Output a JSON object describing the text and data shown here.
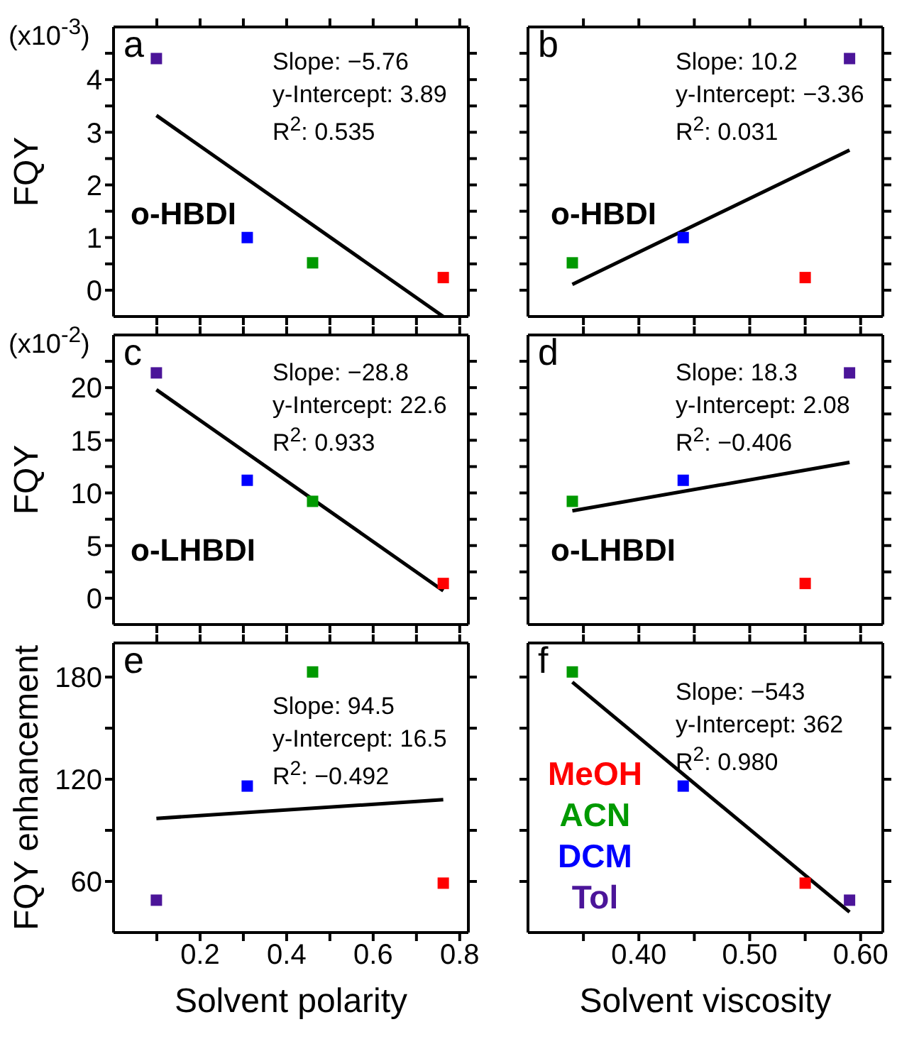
{
  "chart_data": [
    {
      "type": "scatter",
      "ylabel": "FQY",
      "xlim": [
        0,
        0.82
      ],
      "ylim": [
        -0.5,
        5.0
      ],
      "xticks": [
        0.1,
        0.2,
        0.3,
        0.4,
        0.5,
        0.6,
        0.7,
        0.8
      ],
      "yticks": [
        0,
        {
          "value": 0.5,
          "label": null
        },
        1,
        {
          "value": 1.5,
          "label": null
        },
        2,
        {
          "value": 2.5,
          "label": null
        },
        3,
        {
          "value": 3.5,
          "label": null
        },
        4,
        {
          "value": 4.5,
          "label": null
        }
      ],
      "tick_labels": "y",
      "series": [
        {
          "color": "#ff0000",
          "marker": "square",
          "x": [
            0.762
          ],
          "values": [
            0.24
          ]
        },
        {
          "color": "#009900",
          "marker": "square",
          "x": [
            0.46
          ],
          "values": [
            0.52
          ]
        },
        {
          "color": "#0000ff",
          "marker": "square",
          "x": [
            0.309
          ],
          "values": [
            1.0
          ]
        },
        {
          "color": "#4b1599",
          "marker": "square",
          "x": [
            0.099
          ],
          "values": [
            4.4
          ]
        },
        {
          "type": "line",
          "color": "#000000",
          "x": [
            0.099,
            0.762
          ],
          "values": [
            3.32,
            -0.5
          ]
        }
      ],
      "annotations": [
        "a",
        "Slope: −5.76",
        "y-Intercept: 3.89",
        "R$^{2}$: 0.535",
        "o-HBDI",
        "(x10$^{-3}$)"
      ]
    },
    {
      "type": "scatter",
      "xlim": [
        0.3,
        0.62
      ],
      "ylim": [
        -0.5,
        5.0
      ],
      "xticks": [
        0.35,
        0.4,
        0.45,
        0.5,
        0.55,
        0.6
      ],
      "yticks": [
        0,
        0.5,
        1,
        1.5,
        2,
        2.5,
        3,
        3.5,
        4,
        4.5
      ],
      "tick_labels": false,
      "series": [
        {
          "color": "#ff0000",
          "marker": "square",
          "x": [
            0.55
          ],
          "values": [
            0.24
          ]
        },
        {
          "color": "#009900",
          "marker": "square",
          "x": [
            0.34
          ],
          "values": [
            0.52
          ]
        },
        {
          "color": "#0000ff",
          "marker": "square",
          "x": [
            0.44
          ],
          "values": [
            1.0
          ]
        },
        {
          "color": "#4b1599",
          "marker": "square",
          "x": [
            0.59
          ],
          "values": [
            4.4
          ]
        },
        {
          "type": "line",
          "color": "#000000",
          "x": [
            0.34,
            0.59
          ],
          "values": [
            0.11,
            2.66
          ]
        }
      ],
      "annotations": [
        "b",
        "Slope: 10.2",
        "y-Intercept: −3.36",
        "R$^{2}$: 0.031",
        "o-HBDI"
      ]
    },
    {
      "type": "scatter",
      "ylabel": "FQY",
      "xlim": [
        0,
        0.82
      ],
      "ylim": [
        -2.5,
        25
      ],
      "xticks": [
        0.1,
        0.2,
        0.3,
        0.4,
        0.5,
        0.6,
        0.7,
        0.8
      ],
      "yticks": [
        0,
        {
          "value": 2.5,
          "label": null
        },
        5,
        {
          "value": 7.5,
          "label": null
        },
        10,
        {
          "value": 12.5,
          "label": null
        },
        15,
        {
          "value": 17.5,
          "label": null
        },
        20,
        {
          "value": 22.5,
          "label": null
        }
      ],
      "tick_labels": "y",
      "series": [
        {
          "color": "#ff0000",
          "marker": "square",
          "x": [
            0.762
          ],
          "values": [
            1.4
          ]
        },
        {
          "color": "#009900",
          "marker": "square",
          "x": [
            0.46
          ],
          "values": [
            9.2
          ]
        },
        {
          "color": "#0000ff",
          "marker": "square",
          "x": [
            0.309
          ],
          "values": [
            11.2
          ]
        },
        {
          "color": "#4b1599",
          "marker": "square",
          "x": [
            0.099
          ],
          "values": [
            21.4
          ]
        },
        {
          "type": "line",
          "color": "#000000",
          "x": [
            0.099,
            0.762
          ],
          "values": [
            19.8,
            0.7
          ]
        }
      ],
      "annotations": [
        "c",
        "Slope: −28.8",
        "y-Intercept: 22.6",
        "R$^{2}$: 0.933",
        "o-LHBDI",
        "(x10$^{-2}$)"
      ]
    },
    {
      "type": "scatter",
      "xlim": [
        0.3,
        0.62
      ],
      "ylim": [
        -2.5,
        25
      ],
      "xticks": [
        0.35,
        0.4,
        0.45,
        0.5,
        0.55,
        0.6
      ],
      "yticks": [
        0,
        2.5,
        5,
        7.5,
        10,
        12.5,
        15,
        17.5,
        20,
        22.5
      ],
      "tick_labels": false,
      "series": [
        {
          "color": "#ff0000",
          "marker": "square",
          "x": [
            0.55
          ],
          "values": [
            1.4
          ]
        },
        {
          "color": "#009900",
          "marker": "square",
          "x": [
            0.34
          ],
          "values": [
            9.2
          ]
        },
        {
          "color": "#0000ff",
          "marker": "square",
          "x": [
            0.44
          ],
          "values": [
            11.2
          ]
        },
        {
          "color": "#4b1599",
          "marker": "square",
          "x": [
            0.59
          ],
          "values": [
            21.4
          ]
        },
        {
          "type": "line",
          "color": "#000000",
          "x": [
            0.34,
            0.59
          ],
          "values": [
            8.3,
            12.9
          ]
        }
      ],
      "annotations": [
        "d",
        "Slope: 18.3",
        "y-Intercept: 2.08",
        "R$^{2}$: −0.406",
        "o-LHBDI"
      ]
    },
    {
      "type": "scatter",
      "xlabel": "Solvent polarity",
      "ylabel": "FQY enhancement",
      "xlim": [
        0,
        0.82
      ],
      "ylim": [
        30,
        200
      ],
      "xticks": [
        {
          "value": 0.1,
          "label": null
        },
        0.2,
        {
          "value": 0.3,
          "label": null
        },
        0.4,
        {
          "value": 0.5,
          "label": null
        },
        0.6,
        {
          "value": 0.7,
          "label": null
        },
        0.8
      ],
      "yticks": [
        60,
        {
          "value": 90,
          "label": null
        },
        120,
        {
          "value": 150,
          "label": null
        },
        180
      ],
      "series": [
        {
          "color": "#ff0000",
          "marker": "square",
          "x": [
            0.762
          ],
          "values": [
            59
          ]
        },
        {
          "color": "#009900",
          "marker": "square",
          "x": [
            0.46
          ],
          "values": [
            183
          ]
        },
        {
          "color": "#0000ff",
          "marker": "square",
          "x": [
            0.309
          ],
          "values": [
            116
          ]
        },
        {
          "color": "#4b1599",
          "marker": "square",
          "x": [
            0.099
          ],
          "values": [
            49
          ]
        },
        {
          "type": "line",
          "color": "#000000",
          "x": [
            0.099,
            0.762
          ],
          "values": [
            97,
            108
          ]
        }
      ],
      "annotations": [
        "e",
        "Slope: 94.5",
        "y-Intercept: 16.5",
        "R$^{2}$: −0.492"
      ]
    },
    {
      "type": "scatter",
      "xlabel": "Solvent viscosity",
      "xlim": [
        0.3,
        0.62
      ],
      "ylim": [
        30,
        200
      ],
      "xticks": [
        {
          "value": 0.35,
          "label": null
        },
        {
          "value": 0.4,
          "label": "0.40"
        },
        {
          "value": 0.45,
          "label": null
        },
        {
          "value": 0.5,
          "label": "0.50"
        },
        {
          "value": 0.55,
          "label": null
        },
        {
          "value": 0.6,
          "label": "0.60"
        }
      ],
      "yticks": [
        60,
        90,
        120,
        150,
        180
      ],
      "tick_labels": "x",
      "legend": "bottom left",
      "series": [
        {
          "name": "MeOH",
          "color": "#ff0000",
          "marker": "square",
          "x": [
            0.55
          ],
          "values": [
            59
          ]
        },
        {
          "name": "ACN",
          "color": "#009900",
          "marker": "square",
          "x": [
            0.34
          ],
          "values": [
            183
          ]
        },
        {
          "name": "DCM",
          "color": "#0000ff",
          "marker": "square",
          "x": [
            0.44
          ],
          "values": [
            116
          ]
        },
        {
          "name": "Tol",
          "color": "#4b1599",
          "marker": "square",
          "x": [
            0.59
          ],
          "values": [
            49
          ]
        },
        {
          "type": "line",
          "color": "#000000",
          "x": [
            0.34,
            0.59
          ],
          "values": [
            177,
            42
          ]
        }
      ],
      "annotations": [
        "f",
        "Slope: −543",
        "y-Intercept: 362",
        "R$^{2}$: 0.980"
      ]
    }
  ]
}
